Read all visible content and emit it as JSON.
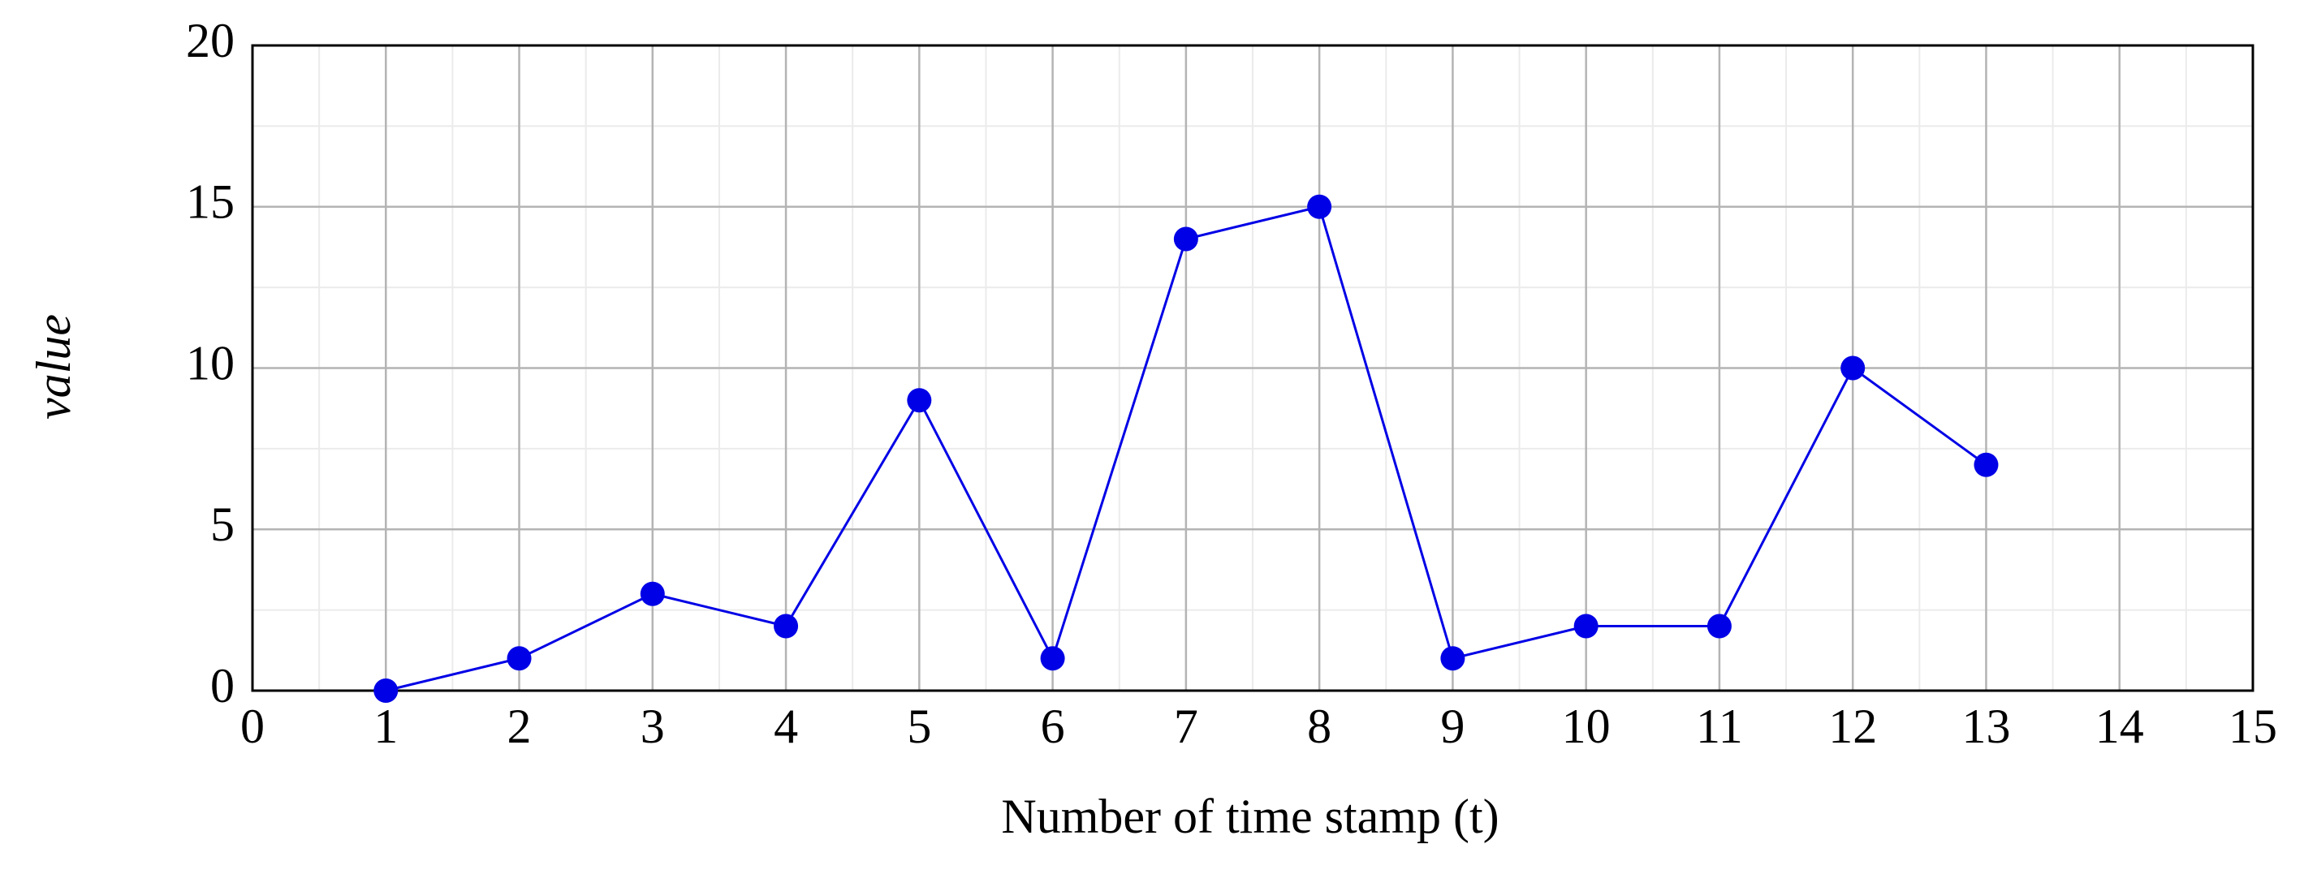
{
  "chart_data": {
    "type": "line",
    "xlabel": "Number of time stamp (t)",
    "ylabel": "value",
    "x": [
      1,
      2,
      3,
      4,
      5,
      6,
      7,
      8,
      9,
      10,
      11,
      12,
      13
    ],
    "series": [
      {
        "name": "value",
        "color": "#0000e6",
        "values": [
          0,
          1,
          3,
          2,
          9,
          1,
          14,
          15,
          1,
          2,
          2,
          10,
          7
        ]
      }
    ],
    "xlim": [
      0,
      15
    ],
    "xticks": [
      0,
      1,
      2,
      3,
      4,
      5,
      6,
      7,
      8,
      9,
      10,
      11,
      12,
      13,
      14,
      15
    ],
    "ylim": [
      0,
      20
    ],
    "yticks": [
      0,
      5,
      10,
      15,
      20
    ],
    "grid": true,
    "minor_grid": true,
    "markers": true
  }
}
